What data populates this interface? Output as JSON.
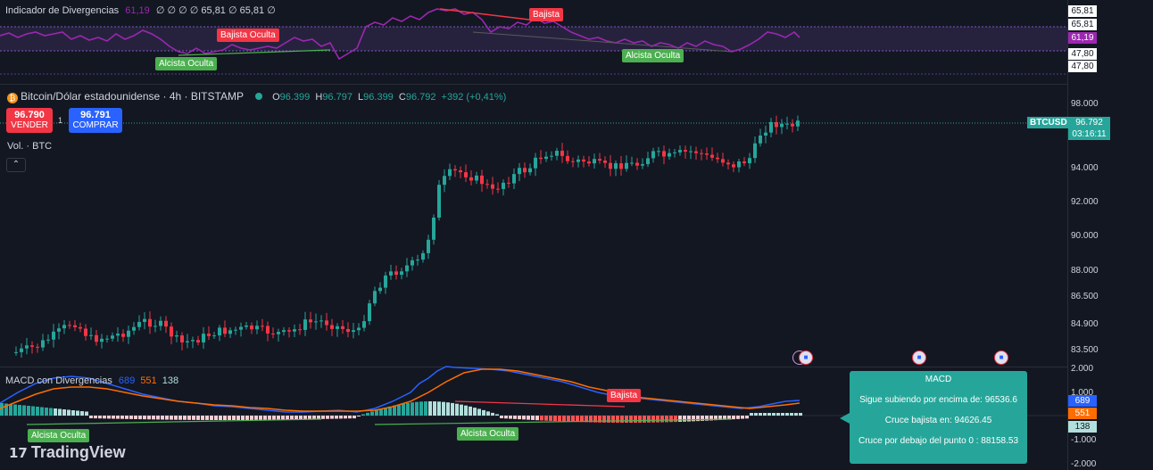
{
  "rsi_pane": {
    "title": "Indicador de Divergencias",
    "value": "61,19",
    "extra": "∅ ∅ ∅ ∅ 65,81 ∅ 65,81 ∅",
    "labels": {
      "bajista": "Bajista",
      "bajista_oculta": "Bajista Oculta",
      "alcista_oculta_1": "Alcista Oculta",
      "alcista_oculta_2": "Alcista Oculta"
    },
    "axis": {
      "top1": "65,81",
      "top2": "65,81",
      "current": "61,19",
      "low1": "47,80",
      "low2": "47,80"
    }
  },
  "symbol": {
    "name": "Bitcoin/Dólar estadounidense · 4h · BITSTAMP",
    "o_label": "O",
    "o": "96.399",
    "h_label": "H",
    "h": "96.797",
    "l_label": "L",
    "l": "96.399",
    "c_label": "C",
    "c": "96.792",
    "change": "+392 (+0,41%)"
  },
  "trade": {
    "sell_price": "96.790",
    "sell_label": "VENDER",
    "spread": "1",
    "buy_price": "96.791",
    "buy_label": "COMPRAR"
  },
  "vol_label": "Vol. · BTC",
  "price_axis": {
    "ticks": [
      "98.000",
      "94.000",
      "92.000",
      "90.000",
      "88.000",
      "86.500",
      "84.900",
      "83.500"
    ],
    "ticker": "BTCUSD",
    "last_price": "96.792",
    "countdown": "03:16:11"
  },
  "macd_pane": {
    "title": "MACD con Divergencias",
    "v1": "689",
    "v2": "551",
    "v3": "138",
    "labels": {
      "bajista": "Bajista",
      "alcista_oculta_1": "Alcista Oculta",
      "alcista_oculta_2": "Alcista Oculta"
    },
    "axis": {
      "t1": "2.000",
      "t2": "1.000",
      "t3": "-1.000",
      "t4": "-2.000",
      "v1": "689",
      "v2": "551",
      "v3": "138"
    }
  },
  "macd_popup": {
    "title": "MACD",
    "line1": "Sigue subiendo por encima de: 96536.6",
    "line2": "Cruce bajista en: 94626.45",
    "line3": "Cruce por debajo del punto 0 : 88158.53"
  },
  "brand": "TradingView",
  "colors": {
    "up": "#26a69a",
    "down": "#f23645",
    "rsi": "#9c27b0",
    "macd": "#2962ff",
    "signal": "#ff6d00",
    "popup": "#26a69a"
  }
}
